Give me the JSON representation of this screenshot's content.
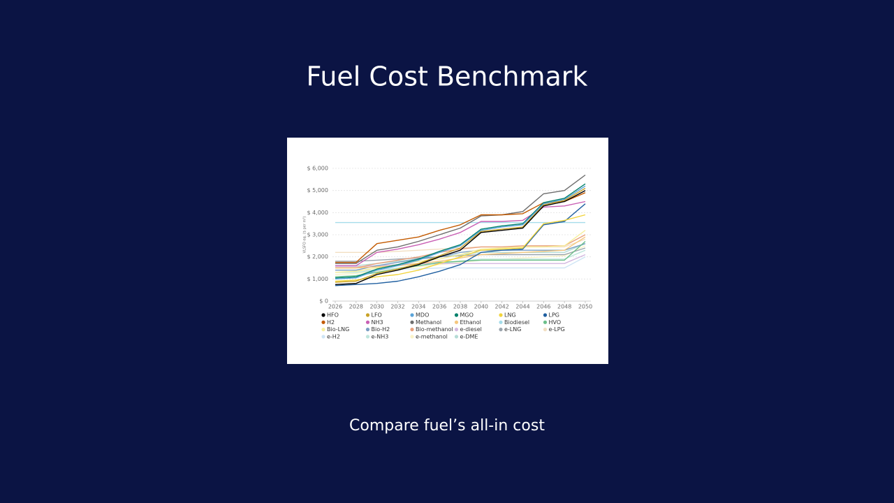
{
  "title": "Fuel Cost Benchmark",
  "subtitle": "Compare fuel’s all-in cost",
  "chart_data": {
    "type": "line",
    "y_label": "VLSFO eq. ($ per m³)",
    "x": [
      2026,
      2028,
      2030,
      2032,
      2034,
      2036,
      2038,
      2040,
      2042,
      2044,
      2046,
      2048,
      2050
    ],
    "xlim": [
      2026,
      2050
    ],
    "xticks": [
      2026,
      2028,
      2030,
      2032,
      2034,
      2036,
      2038,
      2040,
      2042,
      2044,
      2046,
      2048,
      2050
    ],
    "ylim": [
      0,
      6000
    ],
    "yticks": [
      {
        "value": 0,
        "label": "$ 0"
      },
      {
        "value": 1000,
        "label": "$ 1,000"
      },
      {
        "value": 2000,
        "label": "$ 2,000"
      },
      {
        "value": 3000,
        "label": "$ 3,000"
      },
      {
        "value": 4000,
        "label": "$ 4,000"
      },
      {
        "value": 5000,
        "label": "$ 5,000"
      },
      {
        "value": 6000,
        "label": "$ 6,000"
      }
    ],
    "grid": true,
    "series": [
      {
        "name": "HFO",
        "color": "#000000",
        "values": [
          750,
          800,
          1200,
          1400,
          1650,
          2000,
          2300,
          3100,
          3200,
          3300,
          4300,
          4500,
          5000
        ]
      },
      {
        "name": "LFO",
        "color": "#c9a227",
        "values": [
          850,
          900,
          1250,
          1450,
          1700,
          2050,
          2400,
          3150,
          3250,
          3350,
          4350,
          4550,
          5100
        ]
      },
      {
        "name": "MDO",
        "color": "#5ba4d9",
        "values": [
          1000,
          1050,
          1400,
          1600,
          1850,
          2200,
          2500,
          3200,
          3350,
          3450,
          4400,
          4600,
          5200
        ]
      },
      {
        "name": "MGO",
        "color": "#00806b",
        "values": [
          1050,
          1100,
          1450,
          1650,
          1900,
          2250,
          2550,
          3250,
          3400,
          3500,
          4450,
          4650,
          5300
        ]
      },
      {
        "name": "LNG",
        "color": "#f2d43b",
        "values": [
          900,
          950,
          1100,
          1200,
          1400,
          1700,
          2000,
          2300,
          2350,
          2400,
          3500,
          3650,
          3900
        ]
      },
      {
        "name": "LPG",
        "color": "#1f5fa0",
        "values": [
          700,
          750,
          800,
          900,
          1100,
          1350,
          1650,
          2200,
          2300,
          2350,
          3450,
          3600,
          4400
        ]
      },
      {
        "name": "H2",
        "color": "#c35a00",
        "values": [
          1750,
          1750,
          2600,
          2750,
          2900,
          3200,
          3450,
          3900,
          3900,
          3950,
          4450,
          4500,
          4900
        ]
      },
      {
        "name": "NH3",
        "color": "#c95fb4",
        "values": [
          1600,
          1600,
          2200,
          2350,
          2550,
          2800,
          3100,
          3600,
          3600,
          3650,
          4250,
          4300,
          4500
        ]
      },
      {
        "name": "Methanol",
        "color": "#6d6d6d",
        "values": [
          1700,
          1700,
          2300,
          2450,
          2700,
          3000,
          3300,
          3850,
          3900,
          4050,
          4850,
          5000,
          5700
        ]
      },
      {
        "name": "Ethanol",
        "color": "#f5c77e",
        "values": [
          1500,
          1500,
          1550,
          1600,
          1700,
          1800,
          1950,
          2100,
          2150,
          2200,
          2250,
          2300,
          2900
        ]
      },
      {
        "name": "Biodiesel",
        "color": "#a4dcea",
        "values": [
          3550,
          3550,
          3550,
          3550,
          3550,
          3550,
          3550,
          3550,
          3550,
          3550,
          3550,
          3550,
          3550
        ]
      },
      {
        "name": "HVO",
        "color": "#6cbf8a",
        "values": [
          1100,
          1150,
          1300,
          1450,
          1600,
          1750,
          1800,
          1850,
          1850,
          1850,
          1850,
          1850,
          2700
        ]
      },
      {
        "name": "Bio-LNG",
        "color": "#f7ef9a",
        "values": [
          1300,
          1350,
          1500,
          1650,
          1800,
          1900,
          2100,
          2350,
          2400,
          2450,
          2450,
          2500,
          3200
        ]
      },
      {
        "name": "Bio-H2",
        "color": "#7a9fc4",
        "values": [
          1400,
          1400,
          1600,
          1750,
          1900,
          2000,
          2200,
          2300,
          2300,
          2300,
          2300,
          2300,
          2600
        ]
      },
      {
        "name": "Bio-methanol",
        "color": "#e8a07c",
        "values": [
          1500,
          1500,
          1700,
          1850,
          2000,
          2200,
          2350,
          2450,
          2450,
          2500,
          2500,
          2500,
          3000
        ]
      },
      {
        "name": "e-diesel",
        "color": "#d4b8e0",
        "values": [
          1550,
          1550,
          1600,
          1650,
          1700,
          1700,
          1700,
          1700,
          1700,
          1700,
          1700,
          1700,
          2100
        ]
      },
      {
        "name": "e-LNG",
        "color": "#9aa4ad",
        "values": [
          1800,
          1800,
          1850,
          1900,
          1950,
          2000,
          2050,
          2100,
          2100,
          2100,
          2100,
          2100,
          2400
        ]
      },
      {
        "name": "e-LPG",
        "color": "#f2dfc2",
        "values": [
          2200,
          2200,
          2200,
          2250,
          2300,
          2350,
          2400,
          2450,
          2450,
          2450,
          2450,
          2450,
          2800
        ]
      },
      {
        "name": "e-H2",
        "color": "#cfe5f5",
        "values": [
          1400,
          1400,
          1400,
          1450,
          1450,
          1500,
          1500,
          1500,
          1500,
          1500,
          1500,
          1500,
          2000
        ]
      },
      {
        "name": "e-NH3",
        "color": "#bfe6dd",
        "values": [
          1300,
          1300,
          1400,
          1500,
          1600,
          1700,
          1800,
          1900,
          1900,
          1900,
          1900,
          1900,
          2300
        ]
      },
      {
        "name": "e-methanol",
        "color": "#fbf3c8",
        "values": [
          1200,
          1250,
          1350,
          1450,
          1550,
          1650,
          1750,
          1850,
          1900,
          1950,
          2000,
          2050,
          2500
        ]
      },
      {
        "name": "e-DME",
        "color": "#b5dcd6",
        "values": [
          1600,
          1600,
          1700,
          1800,
          1900,
          2000,
          2100,
          2200,
          2200,
          2200,
          2200,
          2200,
          2600
        ]
      }
    ]
  }
}
